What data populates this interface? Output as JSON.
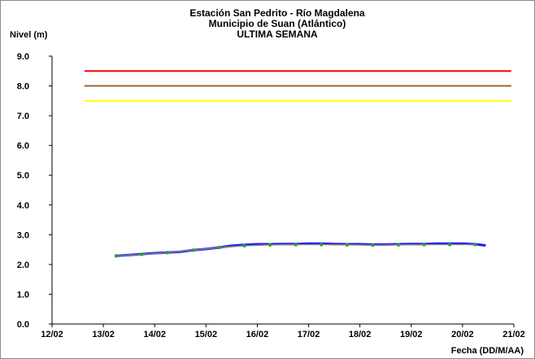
{
  "chart_data": {
    "type": "line",
    "title_lines": [
      "Estación San Pedrito - Río Magdalena",
      "Municipio de Suan (Atlántico)",
      "ULTIMA SEMANA"
    ],
    "ylabel": "Nivel (m)",
    "xlabel": "Fecha (DD/M/AA)",
    "x_ticks": [
      "12/02",
      "13/02",
      "14/02",
      "15/02",
      "16/02",
      "17/02",
      "18/02",
      "19/02",
      "20/02",
      "21/02"
    ],
    "y_ticks": [
      "0.0",
      "1.0",
      "2.0",
      "3.0",
      "4.0",
      "5.0",
      "6.0",
      "7.0",
      "8.0",
      "9.0"
    ],
    "ylim": [
      0,
      9
    ],
    "xlim": [
      0,
      9
    ],
    "grid": false,
    "thresholds": [
      {
        "value": 8.5,
        "color": "#ff0000",
        "x_start": 0.63,
        "x_end": 8.95
      },
      {
        "value": 8.0,
        "color": "#996633",
        "x_start": 0.63,
        "x_end": 8.95
      },
      {
        "value": 7.5,
        "color": "#ffff00",
        "x_start": 0.63,
        "x_end": 8.95
      }
    ],
    "series": [
      {
        "color": "#1a1aff",
        "x": [
          1.25,
          1.5,
          1.75,
          2.0,
          2.25,
          2.5,
          2.75,
          3.0,
          3.25,
          3.5,
          3.75,
          4.0,
          4.25,
          4.5,
          4.75,
          5.0,
          5.25,
          5.5,
          5.75,
          6.0,
          6.25,
          6.5,
          6.75,
          7.0,
          7.25,
          7.5,
          7.75,
          8.0,
          8.25,
          8.45
        ],
        "values": [
          2.29,
          2.32,
          2.35,
          2.38,
          2.4,
          2.43,
          2.48,
          2.52,
          2.57,
          2.63,
          2.66,
          2.68,
          2.68,
          2.69,
          2.69,
          2.7,
          2.7,
          2.69,
          2.68,
          2.68,
          2.67,
          2.67,
          2.68,
          2.69,
          2.69,
          2.7,
          2.7,
          2.7,
          2.68,
          2.64
        ]
      },
      {
        "color": "#808080",
        "x": [
          1.25,
          1.75,
          2.25,
          2.75,
          3.25,
          3.75,
          4.25,
          4.75,
          5.25,
          5.75,
          6.25,
          6.75,
          7.25,
          7.75,
          8.25
        ],
        "values": [
          2.29,
          2.34,
          2.4,
          2.48,
          2.57,
          2.63,
          2.66,
          2.67,
          2.67,
          2.66,
          2.65,
          2.66,
          2.67,
          2.67,
          2.67
        ]
      }
    ],
    "marker_color": "#2fa12f"
  }
}
